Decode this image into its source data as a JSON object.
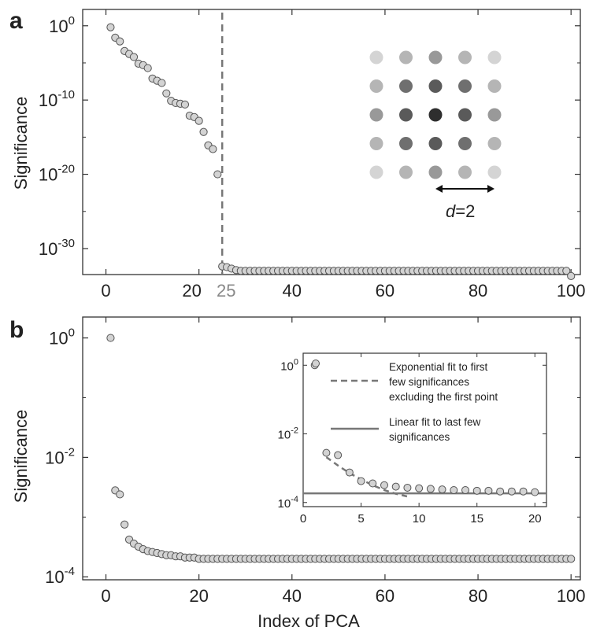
{
  "chart_data": [
    {
      "panel": "a",
      "type": "scatter",
      "ylabel": "Significance",
      "yscale": "log",
      "xlim": [
        -5,
        102
      ],
      "ylim_exp": [
        -33.5,
        2.2
      ],
      "xticks": [
        0,
        20,
        40,
        60,
        80,
        100
      ],
      "extra_xtick": {
        "value": 25,
        "label": "25",
        "color": "#888888"
      },
      "ytick_exponents": [
        0,
        -10,
        -20,
        -30
      ],
      "ytick_base": "10",
      "vline_x": 25,
      "exponents": [
        -0.2,
        -1.6,
        -2.1,
        -3.4,
        -3.8,
        -4.2,
        -5.1,
        -5.3,
        -5.7,
        -7.1,
        -7.4,
        -7.7,
        -9.1,
        -10.1,
        -10.4,
        -10.5,
        -10.6,
        -12.1,
        -12.3,
        -12.8,
        -14.3,
        -16.1,
        -16.6,
        -20.0,
        -32.4,
        -32.5,
        -32.7,
        -32.9,
        -33.0,
        -33.0,
        -33.0,
        -33.0,
        -33.0,
        -33.0,
        -33.0,
        -33.0,
        -33.0,
        -33.0,
        -33.0,
        -33.0,
        -33.0,
        -33.0,
        -33.0,
        -33.0,
        -33.0,
        -33.0,
        -33.0,
        -33.0,
        -33.0,
        -33.0,
        -33.0,
        -33.0,
        -33.0,
        -33.0,
        -33.0,
        -33.0,
        -33.0,
        -33.0,
        -33.0,
        -33.0,
        -33.0,
        -33.0,
        -33.0,
        -33.0,
        -33.0,
        -33.0,
        -33.0,
        -33.0,
        -33.0,
        -33.0,
        -33.0,
        -33.0,
        -33.0,
        -33.0,
        -33.0,
        -33.0,
        -33.0,
        -33.0,
        -33.0,
        -33.0,
        -33.0,
        -33.0,
        -33.0,
        -33.0,
        -33.0,
        -33.0,
        -33.0,
        -33.0,
        -33.0,
        -33.0,
        -33.0,
        -33.0,
        -33.0,
        -33.0,
        -33.0,
        -33.0,
        -33.0,
        -33.0,
        -33.0,
        -33.7
      ],
      "inset": {
        "grid_size": 5,
        "shades": [
          "#d4d4d4",
          "#b5b5b5",
          "#999999",
          "#b5b5b5",
          "#d4d4d4",
          "#b5b5b5",
          "#6f6f6f",
          "#5a5a5a",
          "#6f6f6f",
          "#b5b5b5",
          "#999999",
          "#5a5a5a",
          "#2e2e2e",
          "#5a5a5a",
          "#999999",
          "#b5b5b5",
          "#6f6f6f",
          "#5a5a5a",
          "#6f6f6f",
          "#b5b5b5",
          "#d4d4d4",
          "#b5b5b5",
          "#999999",
          "#b5b5b5",
          "#d4d4d4"
        ],
        "label_var": "d",
        "label_rest": "=2"
      }
    },
    {
      "panel": "b",
      "type": "scatter",
      "xlabel": "Index of PCA",
      "ylabel": "Significance",
      "yscale": "log",
      "xlim": [
        -5,
        102
      ],
      "ylim_exp": [
        -4.05,
        0.35
      ],
      "xticks": [
        0,
        20,
        40,
        60,
        80,
        100
      ],
      "ytick_exponents": [
        0,
        -2,
        -4
      ],
      "ytick_base": "10",
      "values": [
        1.0,
        0.0028,
        0.0024,
        0.00075,
        0.00042,
        0.00036,
        0.00032,
        0.00029,
        0.00027,
        0.00026,
        0.00025,
        0.00024,
        0.00023,
        0.00023,
        0.00022,
        0.00022,
        0.00021,
        0.00021,
        0.00021,
        0.0002,
        0.0002,
        0.0002,
        0.0002,
        0.0002,
        0.0002,
        0.0002,
        0.0002,
        0.0002,
        0.0002,
        0.0002,
        0.0002,
        0.0002,
        0.0002,
        0.0002,
        0.0002,
        0.0002,
        0.0002,
        0.0002,
        0.0002,
        0.0002,
        0.0002,
        0.0002,
        0.0002,
        0.0002,
        0.0002,
        0.0002,
        0.0002,
        0.0002,
        0.0002,
        0.0002,
        0.0002,
        0.0002,
        0.0002,
        0.0002,
        0.0002,
        0.0002,
        0.0002,
        0.0002,
        0.0002,
        0.0002,
        0.0002,
        0.0002,
        0.0002,
        0.0002,
        0.0002,
        0.0002,
        0.0002,
        0.0002,
        0.0002,
        0.0002,
        0.0002,
        0.0002,
        0.0002,
        0.0002,
        0.0002,
        0.0002,
        0.0002,
        0.0002,
        0.0002,
        0.0002,
        0.0002,
        0.0002,
        0.0002,
        0.0002,
        0.0002,
        0.0002,
        0.0002,
        0.0002,
        0.0002,
        0.0002,
        0.0002,
        0.0002,
        0.0002,
        0.0002,
        0.0002,
        0.0002,
        0.0002,
        0.0002,
        0.0002,
        0.0002
      ],
      "inset": {
        "xlim": [
          0,
          21
        ],
        "ylim_exp": [
          -4.12,
          0.35
        ],
        "xticks": [
          0,
          5,
          10,
          15,
          20
        ],
        "ytick_exponents": [
          0,
          -2,
          -4
        ],
        "points_x": [
          1,
          2,
          3,
          4,
          5,
          6,
          7,
          8,
          9,
          10,
          11,
          12,
          13,
          14,
          15,
          16,
          17,
          18,
          19,
          20
        ],
        "points_y": [
          1.0,
          0.0028,
          0.0024,
          0.00075,
          0.00042,
          0.00036,
          0.00032,
          0.00029,
          0.00027,
          0.00026,
          0.00025,
          0.00024,
          0.00023,
          0.00023,
          0.00022,
          0.00022,
          0.00021,
          0.00021,
          0.00021,
          0.0002
        ],
        "exp_fit": {
          "x": [
            2,
            3,
            4,
            5,
            6,
            7,
            8,
            9
          ],
          "y": [
            0.0021,
            0.0012,
            0.00072,
            0.00047,
            0.00032,
            0.00023,
            0.00018,
            0.00015
          ]
        },
        "lin_fit": {
          "x": [
            0,
            21
          ],
          "y": [
            0.000185,
            0.000185
          ]
        },
        "legend": [
          {
            "marker": "circle",
            "lines": [
              "Exponential fit to first",
              "few significances",
              "excluding the first point"
            ],
            "line_style": "dashed"
          },
          {
            "marker": "",
            "lines": [
              "Linear fit to last few",
              "significances"
            ],
            "line_style": "solid"
          }
        ]
      }
    }
  ],
  "colors": {
    "marker_fill": "#d3d3d3",
    "marker_stroke": "#555555",
    "dashed": "#777777",
    "solid": "#777777"
  }
}
